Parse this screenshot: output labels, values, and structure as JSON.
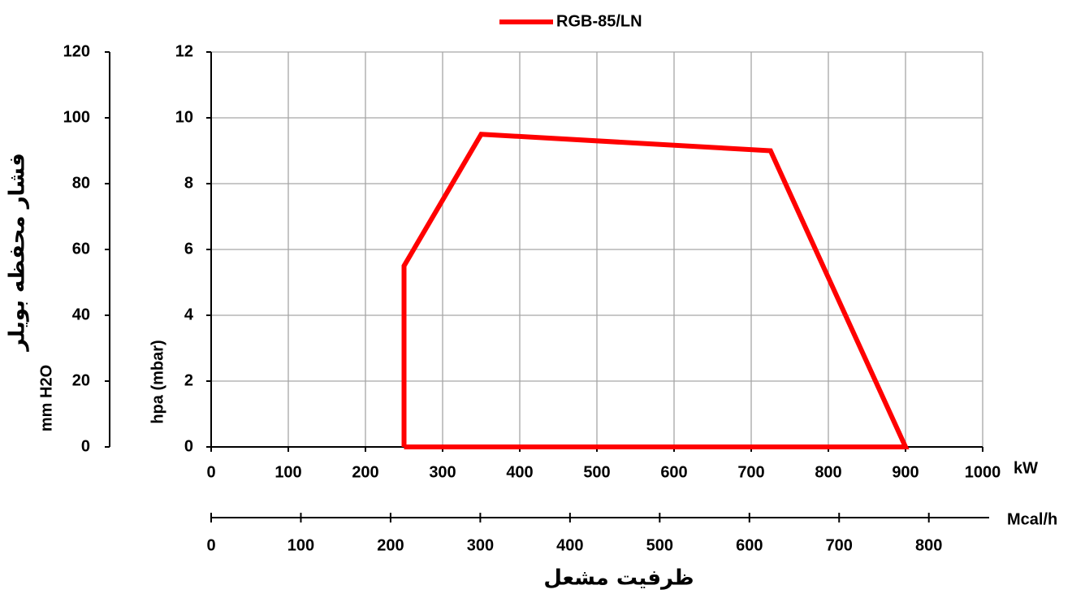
{
  "chart_data": {
    "type": "line",
    "legend": "top",
    "grid": true,
    "series": [
      {
        "name": "RGB-85/LN",
        "color": "#ff0000",
        "x": [
          250,
          250,
          350,
          725,
          900,
          250
        ],
        "values": [
          0,
          5.5,
          9.5,
          9,
          0,
          0
        ]
      }
    ],
    "xlim": [
      0,
      1000
    ],
    "xticks": [
      0,
      100,
      200,
      300,
      400,
      500,
      600,
      700,
      800,
      900,
      1000
    ],
    "x_label": "kW",
    "ylim": [
      0,
      12
    ],
    "yticks": [
      0,
      2,
      4,
      6,
      8,
      10,
      12
    ],
    "y_label": "hpa (mbar)",
    "y2lim": [
      0,
      120
    ],
    "y2ticks": [
      0,
      20,
      40,
      60,
      80,
      100,
      120
    ],
    "y2_label": "mm H2O",
    "y2_title": "فشار محفظه بویلر",
    "x2lim": [
      0,
      860
    ],
    "x2ticks": [
      0,
      100,
      200,
      300,
      400,
      500,
      600,
      700,
      800
    ],
    "x2_label": "Mcal/h",
    "x2_title": "ظرفیت مشعل"
  }
}
